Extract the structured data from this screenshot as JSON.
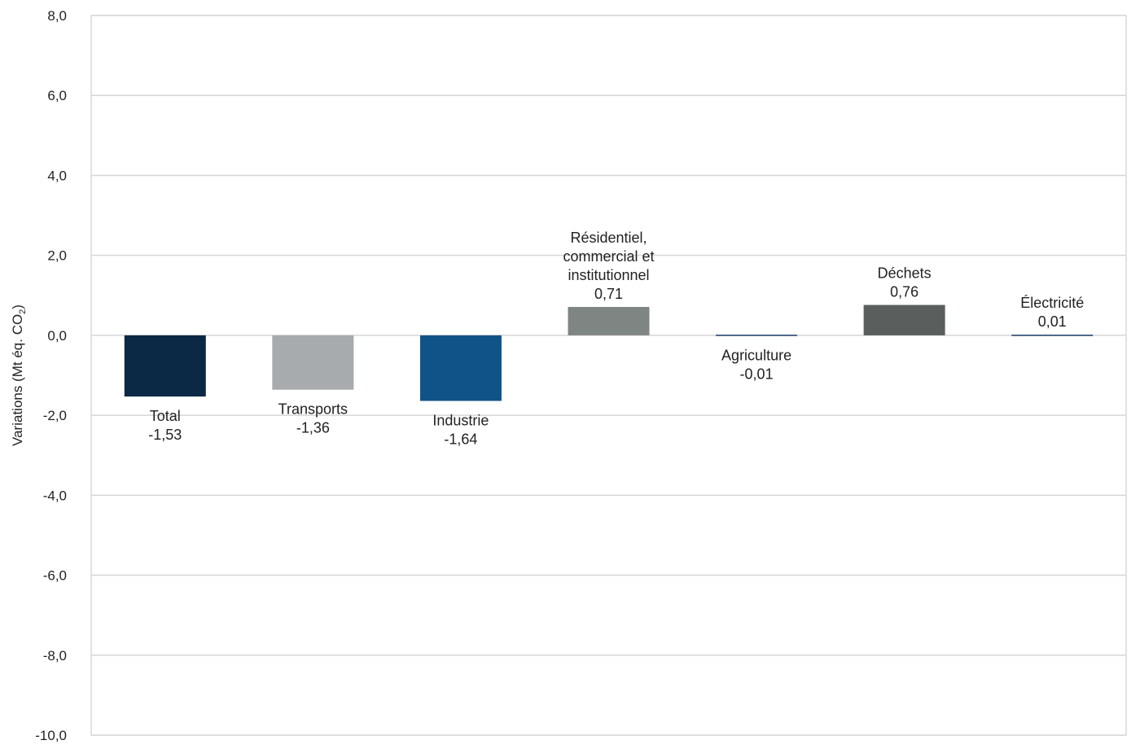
{
  "chart_data": {
    "type": "bar",
    "categories": [
      [
        "Total"
      ],
      [
        "Transports"
      ],
      [
        "Industrie"
      ],
      [
        "Résidentiel,",
        "commercial et",
        "institutionnel"
      ],
      [
        "Agriculture"
      ],
      [
        "Déchets"
      ],
      [
        "Électricité"
      ]
    ],
    "values": [
      -1.53,
      -1.36,
      -1.64,
      0.71,
      -0.01,
      0.76,
      0.01
    ],
    "value_labels": [
      "-1,53",
      "-1,36",
      "-1,64",
      "0,71",
      "-0,01",
      "0,76",
      "0,01"
    ],
    "colors": [
      "#0b2844",
      "#a7abad",
      "#0f5388",
      "#7f8583",
      "#1b3b66",
      "#5a5f5d",
      "#1b3b66"
    ],
    "ylabel": "Variations (Mt éq. CO",
    "ylabel_subscript": "2",
    "ylabel_suffix": ")",
    "ylim": [
      -10,
      8
    ],
    "yticks": [
      8,
      6,
      4,
      2,
      0,
      -2,
      -4,
      -6,
      -8,
      -10
    ],
    "ytick_labels": [
      "8,0",
      "6,0",
      "4,0",
      "2,0",
      "0,0",
      "-2,0",
      "-4,0",
      "-6,0",
      "-8,0",
      "-10,0"
    ],
    "grid": true,
    "grid_color": "#d6d6d6",
    "legend": false
  }
}
